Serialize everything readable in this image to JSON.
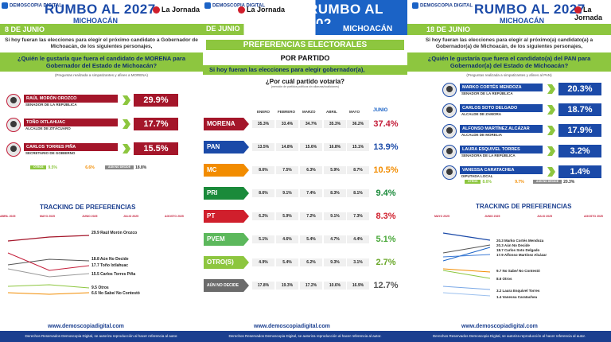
{
  "left": {
    "logo": "DEMOSCOPIA DIGITAL",
    "title": "RUMBO AL 2027",
    "subtitle": "MICHOACÁN",
    "media": "La Jornada",
    "date": "8 DE JUNIO",
    "intro": "Si hoy fueran las elecciones para elegir el próximo candidato a Gobernador de Michoacán, de los siguientes personajes,",
    "question": "¿Quién le gustaría que fuera el candidato de MORENA para Gobernador del Estado de Michoacán?",
    "note": "(Preguntas realizada a simpatizantes y afines a MORENA)",
    "candidates": [
      {
        "name": "RAÚL MORÓN OROZCO",
        "role": "SENADOR DE LA REPÚBLICA",
        "value": "29.9%"
      },
      {
        "name": "TOÑO IXTLAHUAC",
        "role": "ALCALDE DE ZITÁCUARO",
        "value": "17.7%"
      },
      {
        "name": "CARLOS TORRES PIÑA",
        "role": "SECRETARIO DE GOBIERNO",
        "value": "15.5%"
      }
    ],
    "mini": {
      "otros_label": "OTROS",
      "otros": "9.5%",
      "no_sabe": "6.6%",
      "no_decide_label": "AÚN NO DECIDE",
      "no_decide": "18.8%"
    },
    "tracking_title": "TRACKING DE PREFERENCIAS",
    "months": [
      "ABRIL 2025",
      "MAYO 2025",
      "JUNIO 2025",
      "JULIO 2025",
      "AGOSTO 2025"
    ],
    "labels": [
      "29.9 Raúl Morón Orozco",
      "18.8 Aún No Decide",
      "17.7 Toño Ixtlahuac",
      "15.5 Carlos Torres Piña",
      "9.5 Otros",
      "6.6 No Sabe/ No Contestó"
    ],
    "web": "www.demoscopiadigital.com",
    "footer": "Derechos Reservados Demoscopia Digital, se autoriza reproducción al hacer referencia al autor."
  },
  "center": {
    "logo": "DEMOSCOPIA DIGITAL",
    "media": "La Jornada",
    "title": "RUMBO AL 202",
    "subtitle": "MICHOACÁN",
    "date": "DE JUNIO",
    "section": "PREFERENCIAS ELECTORALES",
    "by": "POR PARTIDO",
    "intro": "Si hoy fueran las elecciones para elegir gobernador(a),",
    "question": "¿Por cuál partido votaría?",
    "note": "(mención de partidos políticos sin alianzas/coaliciones)",
    "months": [
      "ENERO",
      "FEBRERO",
      "MARZO",
      "ABRIL",
      "MAYO",
      "JUNIO"
    ],
    "parties": [
      {
        "name": "MORENA",
        "color": "#a4162a",
        "vals": [
          "35.3%",
          "33.4%",
          "34.7%",
          "35.3%",
          "36.2%"
        ],
        "june": "37.4%",
        "jcolor": "#c41e3a"
      },
      {
        "name": "PAN",
        "color": "#1b4aa8",
        "vals": [
          "13.5%",
          "14.8%",
          "15.6%",
          "16.8%",
          "15.1%"
        ],
        "june": "13.9%",
        "jcolor": "#1b4aa8"
      },
      {
        "name": "MC",
        "color": "#f28c00",
        "vals": [
          "8.6%",
          "7.5%",
          "6.3%",
          "5.9%",
          "8.7%"
        ],
        "june": "10.5%",
        "jcolor": "#f28c00"
      },
      {
        "name": "PRI",
        "color": "#1a8a3a",
        "vals": [
          "8.6%",
          "9.1%",
          "7.4%",
          "8.3%",
          "8.1%"
        ],
        "june": "9.4%",
        "jcolor": "#1a8a3a"
      },
      {
        "name": "PT",
        "color": "#d01f2c",
        "vals": [
          "6.2%",
          "5.9%",
          "7.2%",
          "9.1%",
          "7.3%"
        ],
        "june": "8.3%",
        "jcolor": "#d01f2c"
      },
      {
        "name": "PVEM",
        "color": "#5cb85c",
        "vals": [
          "5.1%",
          "4.6%",
          "5.4%",
          "4.7%",
          "4.4%"
        ],
        "june": "5.1%",
        "jcolor": "#4aa83a"
      },
      {
        "name": "OTRO(S)",
        "color": "#8dc63f",
        "vals": [
          "4.9%",
          "5.4%",
          "6.2%",
          "9.3%",
          "3.1%"
        ],
        "june": "2.7%",
        "jcolor": "#6aa82a"
      },
      {
        "name": "AÚN NO DECIDE",
        "color": "#6b6b6b",
        "vals": [
          "17.8%",
          "19.3%",
          "17.2%",
          "10.6%",
          "16.9%"
        ],
        "june": "12.7%",
        "jcolor": "#555555"
      }
    ],
    "web": "www.demoscopiadigital.com",
    "footer": "Derechos Reservados Demoscopia Digital, se autoriza reproducción al hacer referencia al autor."
  },
  "right": {
    "logo": "DEMOSCOPIA DIGITAL",
    "title": "RUMBO AL 2027",
    "subtitle": "MICHOACÁN",
    "media": "La Jornada",
    "date": "18 DE JUNIO",
    "intro": "Si hoy fueran las elecciones para elegir al próximo(a) candidato(a) a Gobernador(a) de Michoacán, de los siguientes personajes,",
    "question": "¿Quién le gustaría que fuera el candidato(a) del PAN para Gobernador(a) del Estado de Michoacán?",
    "note": "(Preguntas realizada a simpatizantes y afines al PAN)",
    "candidates": [
      {
        "name": "MARKO CORTÉS MENDOZA",
        "role": "SENADOR DE LA REPÚBLICA",
        "value": "20.3%"
      },
      {
        "name": "CARLOS SOTO DELGADO",
        "role": "ALCALDE DE ZAMORA",
        "value": "18.7%"
      },
      {
        "name": "ALFONSO MARTÍNEZ ALCÁZAR",
        "role": "ALCALDE DE MORELIA",
        "value": "17.9%"
      },
      {
        "name": "LAURA ESQUIVEL TORRES",
        "role": "SENADORA DE LA REPÚBLICA",
        "value": "3.2%"
      },
      {
        "name": "VANESSA CARATACHEA",
        "role": "DIPUTADA LOCAL",
        "value": "1.4%"
      }
    ],
    "mini": {
      "otros_label": "OTROS",
      "otros": "8.6%",
      "no_sabe": "9.7%",
      "no_decide_label": "AÚN NO DECIDE",
      "no_decide": "20.3%"
    },
    "tracking_title": "TRACKING DE PREFERENCIAS",
    "months": [
      "MAYO 2025",
      "JUNIO 2025",
      "JULIO 2025",
      "AGOSTO 2025"
    ],
    "labels": [
      "20.3 Marko Cortés Mendoza",
      "20.3 Aún No Decide",
      "18.7 Carlos Soto Delgado",
      "17.9 Alfonso Martínez Alcázar",
      "9.7 No Sabe/ No Contestó",
      "8.6 Otros",
      "3.2 Laura Esquivel Torres",
      "1.4 Vanessa Caratachea"
    ],
    "web": "www.demoscopiadigital.com",
    "footer": "Derechos Reservados Demoscopia Digital, se autoriza reproducción al hacer referencia al autor."
  }
}
